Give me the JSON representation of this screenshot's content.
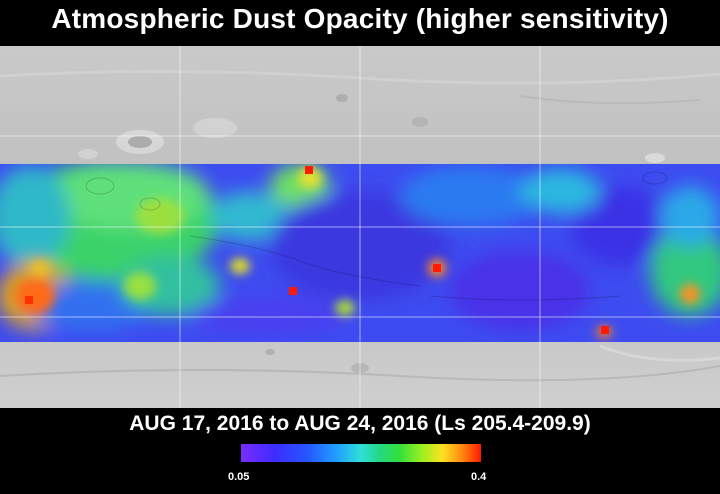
{
  "title": "Atmospheric Dust Opacity (higher sensitivity)",
  "date_range": "AUG 17, 2016 to AUG 24, 2016 (Ls 205.4-209.9)",
  "colorbar": {
    "min_label": "0.05",
    "max_label": "0.4",
    "colors": [
      "#7a2cff",
      "#3d2cff",
      "#2458ff",
      "#20a0ff",
      "#2ee0d8",
      "#25d880",
      "#32e03a",
      "#a0f020",
      "#ffe020",
      "#ff8a10",
      "#ff1a00"
    ]
  }
}
